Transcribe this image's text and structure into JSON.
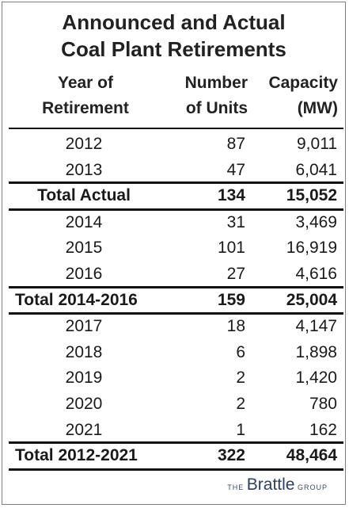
{
  "title": {
    "line1": "Announced and Actual",
    "line2": "Coal Plant Retirements"
  },
  "headers": {
    "year": [
      "Year of",
      "Retirement"
    ],
    "units": [
      "Number",
      "of Units"
    ],
    "capacity": [
      "Capacity",
      "(MW)"
    ]
  },
  "rows": [
    {
      "year": "2012",
      "units": "87",
      "capacity": "9,011"
    },
    {
      "year": "2013",
      "units": "47",
      "capacity": "6,041"
    },
    {
      "year": "Total Actual",
      "units": "134",
      "capacity": "15,052",
      "total": true
    },
    {
      "year": "2014",
      "units": "31",
      "capacity": "3,469"
    },
    {
      "year": "2015",
      "units": "101",
      "capacity": "16,919"
    },
    {
      "year": "2016",
      "units": "27",
      "capacity": "4,616"
    },
    {
      "year": "Total 2014-2016",
      "units": "159",
      "capacity": "25,004",
      "total": true
    },
    {
      "year": "2017",
      "units": "18",
      "capacity": "4,147"
    },
    {
      "year": "2018",
      "units": "6",
      "capacity": "1,898"
    },
    {
      "year": "2019",
      "units": "2",
      "capacity": "1,420"
    },
    {
      "year": "2020",
      "units": "2",
      "capacity": "780"
    },
    {
      "year": "2021",
      "units": "1",
      "capacity": "162"
    },
    {
      "year": "Total 2012-2021",
      "units": "322",
      "capacity": "48,464",
      "total": true
    }
  ],
  "logo": {
    "prefix": "THE",
    "brand": "Brattle",
    "suffix": "GROUP"
  }
}
